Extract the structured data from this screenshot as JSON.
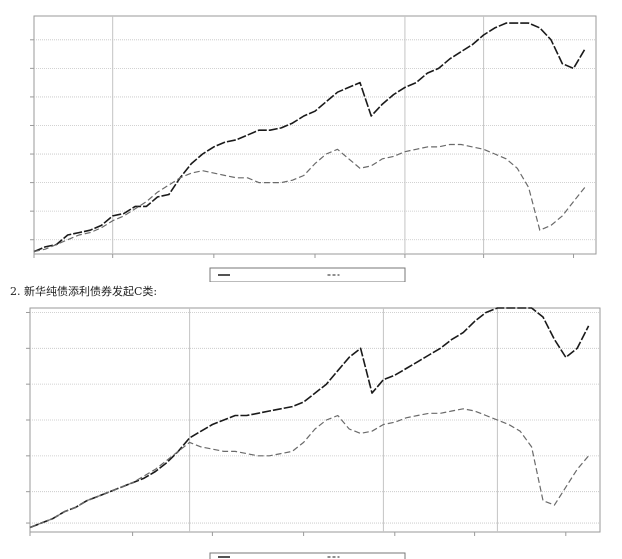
{
  "caption": "2. 新华纯债添利债券发起C类:",
  "colors": {
    "fund_series": "#1a1a1a",
    "benchmark_series": "#6a6a6a",
    "grid": "#c4c4c4",
    "frame": "#9a9a9a",
    "plot_bg": "#ffffff"
  },
  "chart_data": [
    {
      "type": "line",
      "title": "",
      "xlabel": "",
      "ylabel": "",
      "grid": true,
      "legend_position": "bottom",
      "xlim": [
        0,
        100
      ],
      "ylim": [
        0,
        100
      ],
      "x_ticks": [
        {
          "x": 0,
          "label": ""
        },
        {
          "x": 14,
          "label": ""
        },
        {
          "x": 32,
          "label": ""
        },
        {
          "x": 50,
          "label": ""
        },
        {
          "x": 66,
          "label": ""
        },
        {
          "x": 80,
          "label": ""
        },
        {
          "x": 96,
          "label": ""
        }
      ],
      "y_ticks": [
        {
          "y": 6,
          "label": ""
        },
        {
          "y": 18,
          "label": ""
        },
        {
          "y": 30,
          "label": ""
        },
        {
          "y": 42,
          "label": ""
        },
        {
          "y": 54,
          "label": ""
        },
        {
          "y": 66,
          "label": ""
        },
        {
          "y": 78,
          "label": ""
        },
        {
          "y": 90,
          "label": ""
        }
      ],
      "vgrid": [
        14,
        66,
        80
      ],
      "series": [
        {
          "name": "",
          "role": "fund",
          "x": [
            0,
            2,
            4,
            6,
            8,
            10,
            12,
            14,
            16,
            18,
            20,
            22,
            24,
            26,
            28,
            30,
            32,
            34,
            36,
            38,
            40,
            42,
            44,
            46,
            48,
            50,
            52,
            54,
            56,
            58,
            60,
            62,
            64,
            66,
            68,
            70,
            72,
            74,
            76,
            78,
            80,
            82,
            84,
            86,
            88,
            90,
            92,
            94,
            96,
            98
          ],
          "y": [
            1,
            3,
            4,
            8,
            9,
            10,
            12,
            16,
            17,
            20,
            20,
            24,
            25,
            32,
            38,
            42,
            45,
            47,
            48,
            50,
            52,
            52,
            53,
            55,
            58,
            60,
            64,
            68,
            70,
            72,
            58,
            63,
            67,
            70,
            72,
            76,
            78,
            82,
            85,
            88,
            92,
            95,
            97,
            97,
            97,
            95,
            90,
            80,
            78,
            86
          ]
        },
        {
          "name": "",
          "role": "benchmark",
          "x": [
            0,
            2,
            4,
            6,
            8,
            10,
            12,
            14,
            16,
            18,
            20,
            22,
            24,
            26,
            28,
            30,
            32,
            34,
            36,
            38,
            40,
            42,
            44,
            46,
            48,
            50,
            52,
            54,
            56,
            58,
            60,
            62,
            64,
            66,
            68,
            70,
            72,
            74,
            76,
            78,
            80,
            82,
            84,
            86,
            88,
            90,
            92,
            94,
            96,
            98
          ],
          "y": [
            1,
            2,
            4,
            6,
            8,
            9,
            11,
            14,
            16,
            19,
            22,
            26,
            29,
            32,
            34,
            35,
            34,
            33,
            32,
            32,
            30,
            30,
            30,
            31,
            33,
            38,
            42,
            44,
            40,
            36,
            37,
            40,
            41,
            43,
            44,
            45,
            45,
            46,
            46,
            45,
            44,
            42,
            40,
            36,
            28,
            10,
            12,
            16,
            22,
            28
          ]
        }
      ],
      "legend": []
    },
    {
      "type": "line",
      "title": "",
      "xlabel": "",
      "ylabel": "",
      "grid": true,
      "legend_position": "bottom",
      "xlim": [
        0,
        100
      ],
      "ylim": [
        0,
        100
      ],
      "x_ticks": [
        {
          "x": 0,
          "label": ""
        },
        {
          "x": 18,
          "label": ""
        },
        {
          "x": 32,
          "label": ""
        },
        {
          "x": 48,
          "label": ""
        },
        {
          "x": 64,
          "label": ""
        },
        {
          "x": 78,
          "label": ""
        },
        {
          "x": 94,
          "label": ""
        }
      ],
      "y_ticks": [
        {
          "y": 4,
          "label": ""
        },
        {
          "y": 18,
          "label": ""
        },
        {
          "y": 34,
          "label": ""
        },
        {
          "y": 50,
          "label": ""
        },
        {
          "y": 66,
          "label": ""
        },
        {
          "y": 82,
          "label": ""
        },
        {
          "y": 98,
          "label": ""
        }
      ],
      "vgrid": [
        28,
        62,
        82
      ],
      "series": [
        {
          "name": "",
          "role": "fund",
          "x": [
            0,
            2,
            4,
            6,
            8,
            10,
            12,
            14,
            16,
            18,
            20,
            22,
            24,
            26,
            28,
            30,
            32,
            34,
            36,
            38,
            40,
            42,
            44,
            46,
            48,
            50,
            52,
            54,
            56,
            58,
            60,
            62,
            64,
            66,
            68,
            70,
            72,
            74,
            76,
            78,
            80,
            82,
            84,
            86,
            88,
            90,
            92,
            94,
            96,
            98
          ],
          "y": [
            2,
            4,
            6,
            9,
            11,
            14,
            16,
            18,
            20,
            22,
            24,
            27,
            31,
            36,
            42,
            45,
            48,
            50,
            52,
            52,
            53,
            54,
            55,
            56,
            58,
            62,
            66,
            72,
            78,
            82,
            62,
            68,
            70,
            73,
            76,
            79,
            82,
            86,
            89,
            94,
            98,
            100,
            100,
            100,
            100,
            96,
            86,
            78,
            82,
            92
          ]
        },
        {
          "name": "",
          "role": "benchmark",
          "x": [
            0,
            2,
            4,
            6,
            8,
            10,
            12,
            14,
            16,
            18,
            20,
            22,
            24,
            26,
            28,
            30,
            32,
            34,
            36,
            38,
            40,
            42,
            44,
            46,
            48,
            50,
            52,
            54,
            56,
            58,
            60,
            62,
            64,
            66,
            68,
            70,
            72,
            74,
            76,
            78,
            80,
            82,
            84,
            86,
            88,
            90,
            92,
            94,
            96,
            98
          ],
          "y": [
            2,
            4,
            6,
            9,
            11,
            14,
            16,
            18,
            20,
            22,
            25,
            28,
            32,
            36,
            40,
            38,
            37,
            36,
            36,
            35,
            34,
            34,
            35,
            36,
            40,
            46,
            50,
            52,
            46,
            44,
            45,
            48,
            49,
            51,
            52,
            53,
            53,
            54,
            55,
            54,
            52,
            50,
            48,
            45,
            38,
            14,
            12,
            20,
            28,
            34
          ]
        }
      ],
      "legend": []
    }
  ]
}
